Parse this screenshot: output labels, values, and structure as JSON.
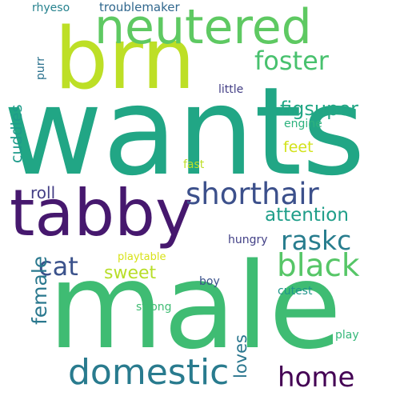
{
  "word_cloud": {
    "background": "#ffffff",
    "words": [
      {
        "text": "wants",
        "color": "#21a685",
        "rotated": false
      },
      {
        "text": "male",
        "color": "#3fbc73",
        "rotated": false
      },
      {
        "text": "brn",
        "color": "#bddf26",
        "rotated": false
      },
      {
        "text": "tabby",
        "color": "#46186e",
        "rotated": false
      },
      {
        "text": "neutered",
        "color": "#5ec962",
        "rotated": false
      },
      {
        "text": "domestic",
        "color": "#297b8e",
        "rotated": false
      },
      {
        "text": "shorthair",
        "color": "#3c508b",
        "rotated": false
      },
      {
        "text": "black",
        "color": "#56c667",
        "rotated": false
      },
      {
        "text": "foster",
        "color": "#48c16e",
        "rotated": false
      },
      {
        "text": "home",
        "color": "#440154",
        "rotated": false
      },
      {
        "text": "raskc",
        "color": "#287d8e",
        "rotated": false
      },
      {
        "text": "cat",
        "color": "#3b528b",
        "rotated": false
      },
      {
        "text": "female",
        "color": "#2a788e",
        "rotated": true
      },
      {
        "text": "figsuper",
        "color": "#22a785",
        "rotated": false
      },
      {
        "text": "attention",
        "color": "#1f9e89",
        "rotated": false
      },
      {
        "text": "sweet",
        "color": "#b8de29",
        "rotated": false
      },
      {
        "text": "loves",
        "color": "#2a768e",
        "rotated": true
      },
      {
        "text": "roll",
        "color": "#433e85",
        "rotated": false
      },
      {
        "text": "cuddles",
        "color": "#1e9b8a",
        "rotated": true
      },
      {
        "text": "feet",
        "color": "#d2e21b",
        "rotated": false
      },
      {
        "text": "troublemaker",
        "color": "#31688e",
        "rotated": false
      },
      {
        "text": "rhyeso",
        "color": "#26828e",
        "rotated": false
      },
      {
        "text": "little",
        "color": "#433e85",
        "rotated": false
      },
      {
        "text": "purr",
        "color": "#2c728e",
        "rotated": true
      },
      {
        "text": "engine",
        "color": "#2db27d",
        "rotated": false
      },
      {
        "text": "fast",
        "color": "#bddf26",
        "rotated": false
      },
      {
        "text": "hungry",
        "color": "#424086",
        "rotated": false
      },
      {
        "text": "playtable",
        "color": "#d8e219",
        "rotated": false
      },
      {
        "text": "boy",
        "color": "#3b528b",
        "rotated": false
      },
      {
        "text": "cutest",
        "color": "#1f958b",
        "rotated": false
      },
      {
        "text": "strong",
        "color": "#3fbc73",
        "rotated": false
      },
      {
        "text": "play",
        "color": "#35b779",
        "rotated": false
      }
    ]
  }
}
